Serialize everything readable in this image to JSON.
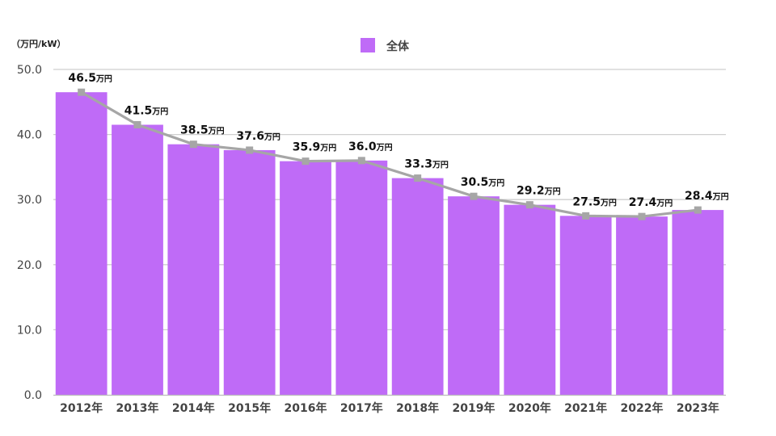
{
  "chart_data": {
    "type": "bar",
    "unit_label": "（万円/kW）",
    "value_unit_suffix": "万円",
    "categories": [
      "2012年",
      "2013年",
      "2014年",
      "2015年",
      "2016年",
      "2017年",
      "2018年",
      "2019年",
      "2020年",
      "2021年",
      "2022年",
      "2023年"
    ],
    "series": [
      {
        "name": "全体",
        "values": [
          46.5,
          41.5,
          38.5,
          37.6,
          35.9,
          36.0,
          33.3,
          30.5,
          29.2,
          27.5,
          27.4,
          28.4
        ],
        "color": "#bf6bf7"
      }
    ],
    "overlay_line": {
      "values": [
        46.5,
        41.5,
        38.5,
        37.6,
        35.9,
        36.0,
        33.3,
        30.5,
        29.2,
        27.5,
        27.4,
        28.4
      ],
      "color": "#a6a6a6"
    },
    "data_labels": [
      "46.5",
      "41.5",
      "38.5",
      "37.6",
      "35.9",
      "36.0",
      "33.3",
      "30.5",
      "29.2",
      "27.5",
      "27.4",
      "28.4"
    ],
    "y_ticks": [
      "0.0",
      "10.0",
      "20.0",
      "30.0",
      "40.0",
      "50.0"
    ],
    "ylim": [
      0,
      50
    ],
    "grid": true,
    "legend_position": "top-center",
    "title": "",
    "xlabel": "",
    "ylabel": ""
  }
}
